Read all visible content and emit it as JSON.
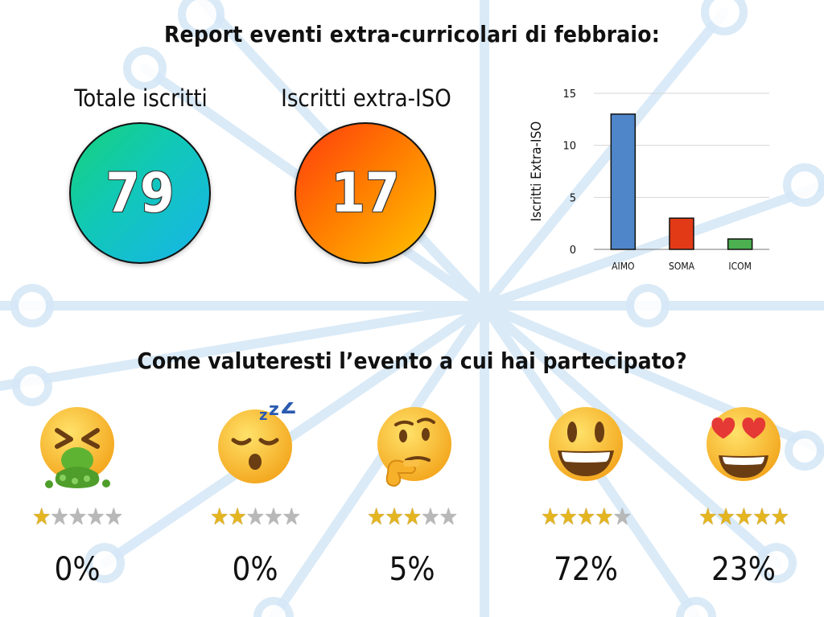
{
  "report": {
    "title": "Report eventi extra-curricolari di febbraio:"
  },
  "metrics": [
    {
      "label": "Totale iscritti",
      "value": "79",
      "accent": "#19c6c2"
    },
    {
      "label": "Iscritti extra-ISO",
      "value": "17",
      "accent": "#ff7a00"
    }
  ],
  "chart_data": {
    "type": "bar",
    "categories": [
      "AIMO",
      "SOMA",
      "ICOM"
    ],
    "values": [
      13,
      3,
      1
    ],
    "colors": [
      "#4f86c9",
      "#e23a16",
      "#4caf50"
    ],
    "ylabel": "Iscritti Extra-ISO",
    "xlabel": "",
    "title": "",
    "ylim": [
      0,
      15
    ],
    "yticks": [
      0,
      5,
      10,
      15
    ],
    "grid": true,
    "legend": "none"
  },
  "survey": {
    "question": "Come valuteresti l’evento a cui hai partecipato?",
    "ratings": [
      {
        "icon": "vomiting-face-icon",
        "stars": 1,
        "max_stars": 5,
        "percent": "0%"
      },
      {
        "icon": "sleeping-face-icon",
        "stars": 2,
        "max_stars": 5,
        "percent": "0%"
      },
      {
        "icon": "thinking-face-icon",
        "stars": 3,
        "max_stars": 5,
        "percent": "5%"
      },
      {
        "icon": "grinning-face-icon",
        "stars": 4,
        "max_stars": 5,
        "percent": "72%"
      },
      {
        "icon": "heart-eyes-face-icon",
        "stars": 5,
        "max_stars": 5,
        "percent": "23%"
      }
    ]
  }
}
